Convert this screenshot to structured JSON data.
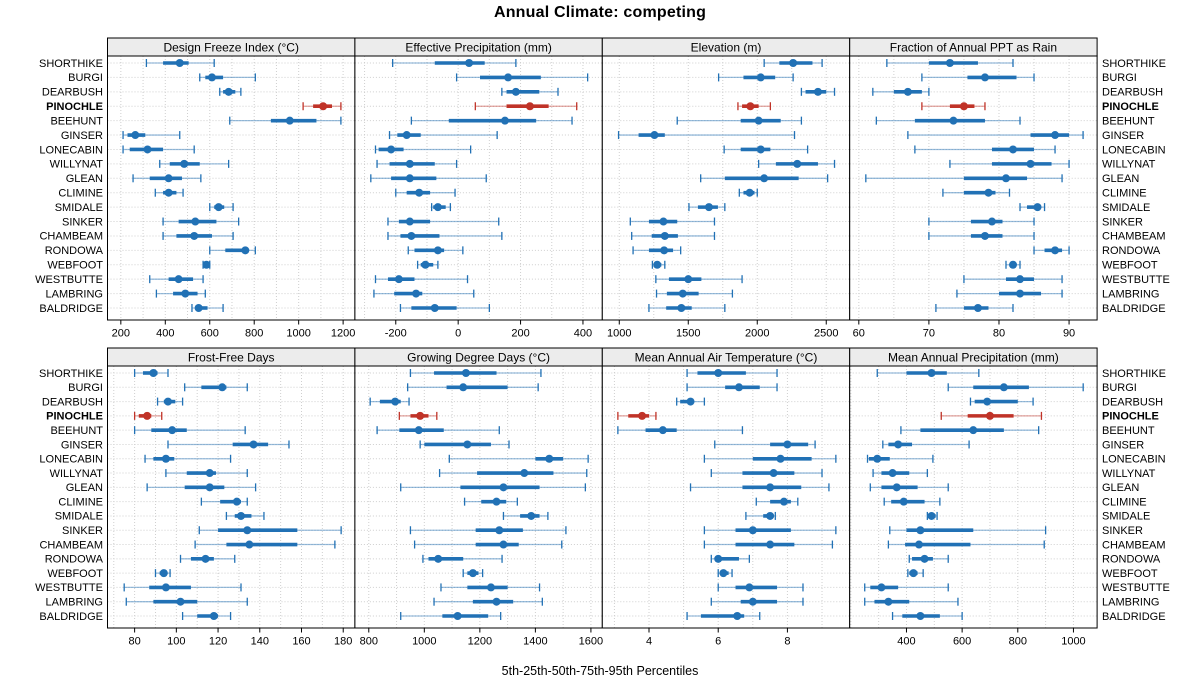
{
  "title": "Annual Climate: competing",
  "xlabel": "5th-25th-50th-75th-95th Percentiles",
  "colors": {
    "series_normal": "#2171b5",
    "series_highlight": "#c03328",
    "strip_bg": "#ececec",
    "panel_border": "#000000",
    "grid_line": "#cfcfcf",
    "text": "#000000"
  },
  "stations": [
    "SHORTHIKE",
    "BURGI",
    "DEARBUSH",
    "PINOCHLE",
    "BEEHUNT",
    "GINSER",
    "LONECABIN",
    "WILLYNAT",
    "GLEAN",
    "CLIMINE",
    "SMIDALE",
    "SINKER",
    "CHAMBEAM",
    "RONDOWA",
    "WEBFOOT",
    "WESTBUTTE",
    "LAMBRING",
    "BALDRIDGE"
  ],
  "highlight_station": "PINOCHLE",
  "chart_data": {
    "type": "dotplot-percentiles",
    "percentiles": [
      "5th",
      "25th",
      "50th",
      "75th",
      "95th"
    ],
    "layout": {
      "rows": 2,
      "cols": 4,
      "legend": "none",
      "grid": "dotted"
    },
    "panels": [
      {
        "title": "Design Freeze Index (°C)",
        "ticks": [
          200,
          400,
          600,
          800,
          1000,
          1200
        ],
        "xlim": [
          140,
          1253
        ],
        "values": [
          [
            315,
            390,
            465,
            505,
            620
          ],
          [
            555,
            580,
            610,
            660,
            805
          ],
          [
            645,
            660,
            685,
            715,
            740
          ],
          [
            1020,
            1065,
            1110,
            1150,
            1190
          ],
          [
            690,
            875,
            960,
            1080,
            1190
          ],
          [
            210,
            230,
            265,
            310,
            465
          ],
          [
            210,
            240,
            320,
            390,
            530
          ],
          [
            375,
            420,
            485,
            555,
            685
          ],
          [
            255,
            330,
            415,
            475,
            560
          ],
          [
            355,
            390,
            415,
            450,
            480
          ],
          [
            600,
            620,
            640,
            665,
            705
          ],
          [
            390,
            460,
            535,
            630,
            730
          ],
          [
            390,
            450,
            530,
            610,
            705
          ],
          [
            600,
            670,
            760,
            775,
            805
          ],
          [
            570,
            575,
            585,
            595,
            600
          ],
          [
            330,
            415,
            460,
            525,
            570
          ],
          [
            360,
            435,
            490,
            545,
            580
          ],
          [
            520,
            535,
            550,
            590,
            660
          ]
        ]
      },
      {
        "title": "Effective Precipitation (mm)",
        "ticks": [
          -200,
          0,
          200,
          400
        ],
        "xlim": [
          -331,
          462
        ],
        "values": [
          [
            -210,
            -75,
            35,
            85,
            185
          ],
          [
            -5,
            70,
            160,
            265,
            415
          ],
          [
            140,
            155,
            185,
            260,
            320
          ],
          [
            55,
            155,
            230,
            290,
            380
          ],
          [
            -150,
            -30,
            150,
            250,
            365
          ],
          [
            -220,
            -195,
            -165,
            -120,
            125
          ],
          [
            -265,
            -255,
            -215,
            -175,
            40
          ],
          [
            -260,
            -220,
            -155,
            -75,
            -5
          ],
          [
            -280,
            -215,
            -155,
            -70,
            90
          ],
          [
            -200,
            -165,
            -125,
            -90,
            -10
          ],
          [
            -85,
            -80,
            -65,
            -40,
            -25
          ],
          [
            -225,
            -190,
            -155,
            -90,
            130
          ],
          [
            -225,
            -185,
            -150,
            -60,
            140
          ],
          [
            -160,
            -140,
            -65,
            -45,
            15
          ],
          [
            -130,
            -120,
            -105,
            -80,
            -65
          ],
          [
            -265,
            -225,
            -190,
            -140,
            30
          ],
          [
            -270,
            -205,
            -135,
            -115,
            50
          ],
          [
            -185,
            -150,
            -75,
            -5,
            100
          ]
        ]
      },
      {
        "title": "Elevation (m)",
        "ticks": [
          1000,
          1500,
          2000,
          2500
        ],
        "xlim": [
          877,
          2670
        ],
        "values": [
          [
            2050,
            2160,
            2260,
            2400,
            2470
          ],
          [
            1720,
            1900,
            2025,
            2130,
            2260
          ],
          [
            2320,
            2350,
            2440,
            2500,
            2560
          ],
          [
            1860,
            1890,
            1950,
            2010,
            2095
          ],
          [
            1420,
            1880,
            2010,
            2170,
            2320
          ],
          [
            995,
            1140,
            1255,
            1330,
            2270
          ],
          [
            1760,
            1880,
            2025,
            2095,
            2365
          ],
          [
            2010,
            2135,
            2290,
            2440,
            2560
          ],
          [
            1590,
            1765,
            2050,
            2300,
            2510
          ],
          [
            1870,
            1900,
            1945,
            1980,
            2000
          ],
          [
            1505,
            1570,
            1650,
            1715,
            1765
          ],
          [
            1080,
            1215,
            1320,
            1420,
            1690
          ],
          [
            1090,
            1235,
            1330,
            1425,
            1690
          ],
          [
            1100,
            1215,
            1325,
            1390,
            1445
          ],
          [
            1240,
            1255,
            1275,
            1305,
            1330
          ],
          [
            1265,
            1360,
            1500,
            1595,
            1890
          ],
          [
            1270,
            1345,
            1460,
            1575,
            1820
          ],
          [
            1215,
            1340,
            1450,
            1525,
            1765
          ]
        ]
      },
      {
        "title": "Fraction of Annual PPT as Rain",
        "ticks": [
          60,
          70,
          80,
          90
        ],
        "xlim": [
          58.7,
          94
        ],
        "values": [
          [
            64,
            70,
            73,
            77,
            82
          ],
          [
            69,
            75.5,
            78,
            82.5,
            85
          ],
          [
            62,
            65,
            67,
            69,
            70
          ],
          [
            69,
            73,
            75,
            76.5,
            78
          ],
          [
            62.5,
            68,
            73.5,
            78,
            83
          ],
          [
            67,
            84.5,
            88,
            90,
            92
          ],
          [
            68,
            79,
            82,
            85,
            88
          ],
          [
            73,
            79,
            84.5,
            87.5,
            90
          ],
          [
            61,
            75,
            81,
            84,
            89
          ],
          [
            72,
            75,
            78.5,
            79.5,
            81.5
          ],
          [
            83,
            84,
            85.5,
            86,
            86.5
          ],
          [
            70,
            76,
            79,
            80.5,
            85
          ],
          [
            70,
            76,
            78,
            80.5,
            85
          ],
          [
            85,
            86.5,
            88,
            89,
            90
          ],
          [
            81,
            81.5,
            82,
            82.5,
            83
          ],
          [
            75,
            81,
            83,
            85,
            89
          ],
          [
            74,
            80,
            83,
            86,
            89
          ],
          [
            71,
            75,
            77,
            78.5,
            82
          ]
        ]
      },
      {
        "title": "Frost-Free Days",
        "ticks": [
          80,
          100,
          120,
          140,
          160,
          180
        ],
        "xlim": [
          67,
          185.6
        ],
        "values": [
          [
            80,
            84,
            89,
            91,
            96
          ],
          [
            104,
            112,
            122,
            124,
            134
          ],
          [
            91,
            94,
            96,
            99.5,
            103
          ],
          [
            80,
            82,
            86,
            88,
            93
          ],
          [
            80,
            88,
            98,
            105,
            133
          ],
          [
            96,
            127,
            137,
            144,
            154
          ],
          [
            85,
            89,
            95,
            99,
            126
          ],
          [
            95,
            105,
            116,
            119,
            134
          ],
          [
            86,
            104,
            116,
            123,
            138
          ],
          [
            112,
            121,
            129,
            131,
            134
          ],
          [
            124,
            128,
            131,
            136,
            142
          ],
          [
            111,
            120,
            134,
            158,
            179
          ],
          [
            109,
            124,
            135,
            158,
            176
          ],
          [
            102,
            107,
            114,
            118,
            128
          ],
          [
            90,
            92,
            94,
            95.5,
            97
          ],
          [
            75,
            87,
            95,
            107,
            131
          ],
          [
            76,
            89,
            102,
            110,
            134
          ],
          [
            103,
            110,
            118,
            120,
            126
          ]
        ]
      },
      {
        "title": "Growing Degree Days (°C)",
        "ticks": [
          800,
          1000,
          1200,
          1400,
          1600
        ],
        "xlim": [
          750,
          1641
        ],
        "values": [
          [
            950,
            1035,
            1150,
            1260,
            1420
          ],
          [
            940,
            1080,
            1140,
            1300,
            1410
          ],
          [
            805,
            840,
            895,
            915,
            945
          ],
          [
            910,
            950,
            985,
            1015,
            1045
          ],
          [
            830,
            910,
            980,
            1070,
            1270
          ],
          [
            985,
            1000,
            1155,
            1240,
            1305
          ],
          [
            1090,
            1400,
            1450,
            1500,
            1590
          ],
          [
            1055,
            1190,
            1360,
            1465,
            1585
          ],
          [
            915,
            1130,
            1285,
            1415,
            1580
          ],
          [
            1145,
            1205,
            1260,
            1295,
            1335
          ],
          [
            1285,
            1345,
            1385,
            1415,
            1445
          ],
          [
            950,
            1185,
            1270,
            1355,
            1510
          ],
          [
            965,
            1185,
            1285,
            1340,
            1495
          ],
          [
            995,
            1015,
            1050,
            1140,
            1280
          ],
          [
            1140,
            1155,
            1175,
            1195,
            1210
          ],
          [
            1060,
            1155,
            1240,
            1300,
            1415
          ],
          [
            1035,
            1175,
            1260,
            1320,
            1425
          ],
          [
            915,
            1065,
            1120,
            1230,
            1275
          ]
        ]
      },
      {
        "title": "Mean Annual Air Temperature (°C)",
        "ticks": [
          4,
          6,
          8
        ],
        "xlim": [
          2.65,
          9.8
        ],
        "values": [
          [
            5.1,
            5.4,
            6.0,
            6.8,
            7.7
          ],
          [
            5.1,
            6.2,
            6.6,
            7.2,
            7.7
          ],
          [
            4.8,
            4.9,
            5.2,
            5.3,
            5.6
          ],
          [
            3.1,
            3.4,
            3.8,
            4.0,
            4.2
          ],
          [
            3.1,
            3.9,
            4.4,
            4.8,
            6.7
          ],
          [
            5.9,
            7.5,
            8.0,
            8.6,
            8.8
          ],
          [
            5.6,
            7.0,
            7.8,
            8.7,
            9.4
          ],
          [
            5.8,
            6.7,
            7.6,
            8.2,
            9.0
          ],
          [
            5.2,
            6.7,
            7.5,
            8.4,
            9.2
          ],
          [
            7.1,
            7.5,
            7.9,
            8.1,
            8.3
          ],
          [
            6.8,
            7.3,
            7.5,
            7.6,
            7.65
          ],
          [
            5.6,
            6.5,
            7.0,
            8.1,
            9.4
          ],
          [
            5.6,
            6.5,
            7.5,
            8.2,
            9.3
          ],
          [
            5.8,
            5.9,
            6.0,
            6.6,
            6.9
          ],
          [
            6.0,
            6.05,
            6.15,
            6.3,
            6.4
          ],
          [
            6.0,
            6.5,
            6.9,
            7.7,
            8.45
          ],
          [
            5.8,
            6.65,
            7.0,
            7.7,
            8.45
          ],
          [
            5.1,
            5.5,
            6.55,
            6.75,
            7.2
          ]
        ]
      },
      {
        "title": "Mean Annual Precipitation (mm)",
        "ticks": [
          400,
          600,
          800,
          1000
        ],
        "xlim": [
          196,
          1085
        ],
        "values": [
          [
            295,
            400,
            490,
            545,
            660
          ],
          [
            550,
            640,
            750,
            840,
            1035
          ],
          [
            630,
            645,
            690,
            800,
            855
          ],
          [
            525,
            620,
            700,
            785,
            885
          ],
          [
            380,
            450,
            640,
            750,
            875
          ],
          [
            315,
            335,
            370,
            420,
            625
          ],
          [
            260,
            265,
            295,
            340,
            495
          ],
          [
            280,
            310,
            350,
            410,
            475
          ],
          [
            270,
            310,
            365,
            440,
            550
          ],
          [
            320,
            345,
            390,
            465,
            520
          ],
          [
            475,
            480,
            490,
            505,
            510
          ],
          [
            340,
            400,
            450,
            640,
            900
          ],
          [
            335,
            395,
            445,
            630,
            895
          ],
          [
            410,
            420,
            465,
            495,
            550
          ],
          [
            405,
            410,
            425,
            440,
            460
          ],
          [
            250,
            270,
            310,
            370,
            550
          ],
          [
            250,
            285,
            335,
            410,
            585
          ],
          [
            350,
            385,
            450,
            520,
            600
          ]
        ]
      }
    ]
  }
}
